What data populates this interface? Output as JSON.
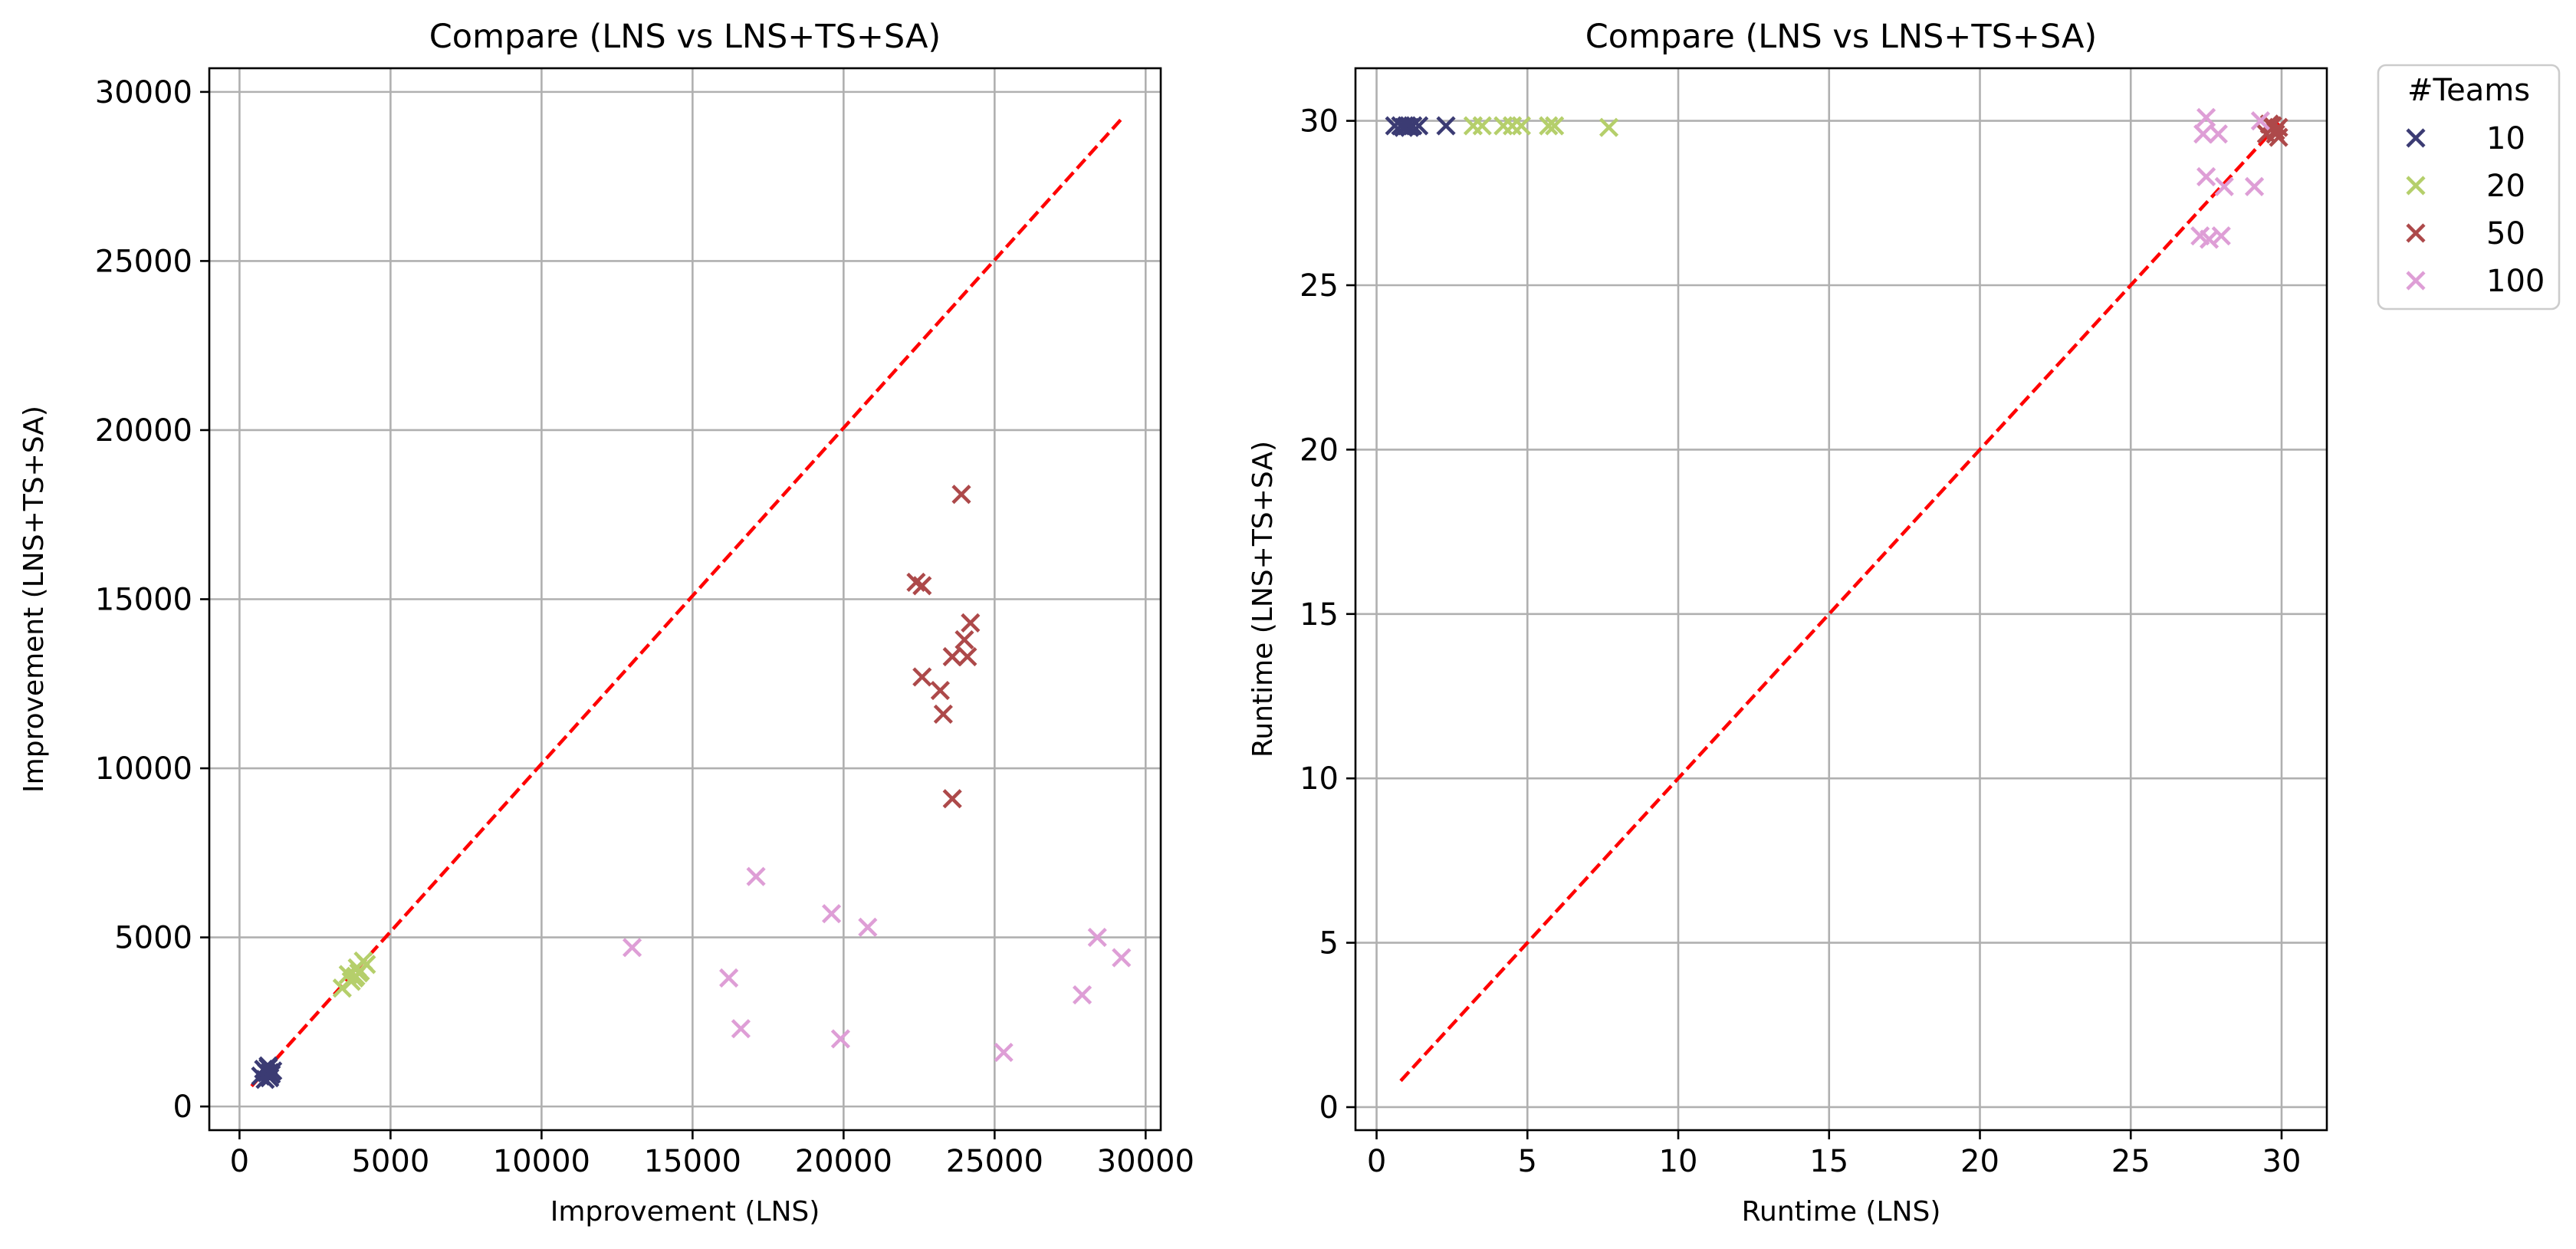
{
  "legend": {
    "title": "#Teams",
    "placement": "outside-right",
    "entries": [
      {
        "label": "10",
        "color": "#3b3b73"
      },
      {
        "label": "20",
        "color": "#b5cf6b"
      },
      {
        "label": "50",
        "color": "#ad494a"
      },
      {
        "label": "100",
        "color": "#de9ed6"
      }
    ]
  },
  "chart_data": [
    {
      "type": "scatter",
      "title": "Compare (LNS vs LNS+TS+SA)",
      "xlabel": "Improvement (LNS)",
      "ylabel": "Improvement (LNS+TS+SA)",
      "xlim": [
        -1000,
        30500
      ],
      "ylim": [
        -700,
        30700
      ],
      "xticks": [
        0,
        5000,
        10000,
        15000,
        20000,
        25000,
        30000
      ],
      "yticks": [
        0,
        5000,
        10000,
        15000,
        20000,
        25000,
        30000
      ],
      "grid": true,
      "reference_line": {
        "style": "dashed",
        "color": "#ff0000",
        "from": [
          400,
          600
        ],
        "to": [
          29200,
          29200
        ]
      },
      "series": [
        {
          "name": "10",
          "color": "#3b3b73",
          "marker": "x",
          "points": [
            [
              700,
              900
            ],
            [
              800,
              1100
            ],
            [
              900,
              1000
            ],
            [
              950,
              1200
            ],
            [
              1000,
              850
            ],
            [
              1050,
              950
            ],
            [
              1100,
              1050
            ],
            [
              850,
              800
            ],
            [
              950,
              1150
            ],
            [
              1000,
              1000
            ]
          ]
        },
        {
          "name": "20",
          "color": "#b5cf6b",
          "marker": "x",
          "points": [
            [
              3400,
              3500
            ],
            [
              3600,
              3900
            ],
            [
              3800,
              3800
            ],
            [
              3900,
              4100
            ],
            [
              4000,
              4000
            ],
            [
              4100,
              4300
            ],
            [
              4200,
              4200
            ],
            [
              3700,
              3700
            ],
            [
              3950,
              3950
            ],
            [
              3850,
              3850
            ]
          ]
        },
        {
          "name": "50",
          "color": "#ad494a",
          "marker": "x",
          "points": [
            [
              23900,
              18100
            ],
            [
              22400,
              15500
            ],
            [
              22600,
              15400
            ],
            [
              24200,
              14300
            ],
            [
              24000,
              13800
            ],
            [
              23600,
              13300
            ],
            [
              24100,
              13300
            ],
            [
              22600,
              12700
            ],
            [
              23200,
              12300
            ],
            [
              23300,
              11600
            ],
            [
              23600,
              9100
            ]
          ]
        },
        {
          "name": "100",
          "color": "#de9ed6",
          "marker": "x",
          "points": [
            [
              13000,
              4700
            ],
            [
              17100,
              6800
            ],
            [
              16200,
              3800
            ],
            [
              16600,
              2300
            ],
            [
              19600,
              5700
            ],
            [
              20800,
              5300
            ],
            [
              19900,
              2000
            ],
            [
              25300,
              1600
            ],
            [
              28400,
              5000
            ],
            [
              29200,
              4400
            ],
            [
              27900,
              3300
            ]
          ]
        }
      ]
    },
    {
      "type": "scatter",
      "title": "Compare (LNS vs LNS+TS+SA)",
      "xlabel": "Runtime (LNS)",
      "ylabel": "Runtime (LNS+TS+SA)",
      "xlim": [
        -0.7,
        31.5
      ],
      "ylim": [
        -0.7,
        31.6
      ],
      "xticks": [
        0,
        5,
        10,
        15,
        20,
        25,
        30
      ],
      "yticks": [
        0,
        5,
        10,
        15,
        20,
        25,
        30
      ],
      "grid": true,
      "reference_line": {
        "style": "dashed",
        "color": "#ff0000",
        "from": [
          0.8,
          0.8
        ],
        "to": [
          30,
          30
        ]
      },
      "series": [
        {
          "name": "10",
          "color": "#3b3b73",
          "marker": "x",
          "points": [
            [
              0.6,
              29.85
            ],
            [
              0.8,
              29.85
            ],
            [
              1.0,
              29.85
            ],
            [
              1.2,
              29.85
            ],
            [
              1.4,
              29.85
            ],
            [
              0.9,
              29.8
            ],
            [
              1.1,
              29.8
            ],
            [
              2.3,
              29.85
            ]
          ]
        },
        {
          "name": "20",
          "color": "#b5cf6b",
          "marker": "x",
          "points": [
            [
              3.2,
              29.85
            ],
            [
              3.5,
              29.85
            ],
            [
              4.2,
              29.85
            ],
            [
              4.5,
              29.85
            ],
            [
              4.8,
              29.85
            ],
            [
              5.7,
              29.85
            ],
            [
              5.9,
              29.85
            ],
            [
              7.7,
              29.8
            ]
          ]
        },
        {
          "name": "50",
          "color": "#ad494a",
          "marker": "x",
          "points": [
            [
              29.5,
              29.6
            ],
            [
              29.7,
              29.85
            ],
            [
              29.8,
              29.7
            ],
            [
              29.9,
              29.5
            ],
            [
              29.6,
              29.9
            ],
            [
              29.8,
              29.6
            ],
            [
              29.9,
              29.8
            ]
          ]
        },
        {
          "name": "100",
          "color": "#de9ed6",
          "marker": "x",
          "points": [
            [
              27.5,
              30.1
            ],
            [
              27.4,
              29.6
            ],
            [
              27.9,
              29.6
            ],
            [
              27.5,
              28.3
            ],
            [
              28.1,
              28.0
            ],
            [
              29.1,
              28.0
            ],
            [
              27.3,
              26.5
            ],
            [
              27.6,
              26.4
            ],
            [
              28.0,
              26.5
            ],
            [
              29.3,
              30.0
            ]
          ]
        }
      ]
    }
  ]
}
